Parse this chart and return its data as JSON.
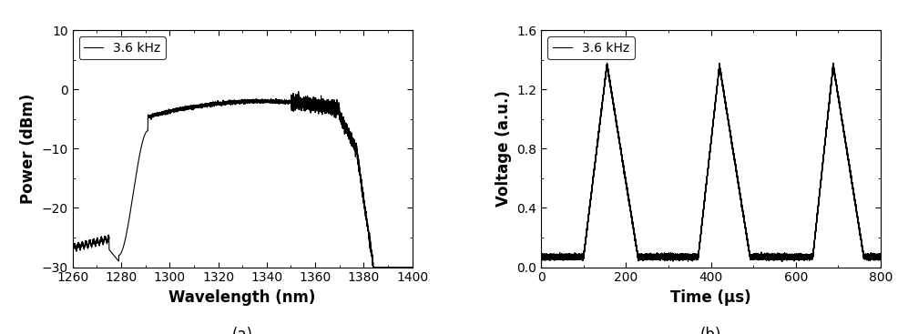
{
  "plot_a": {
    "xlabel": "Wavelength (nm)",
    "ylabel": "Power (dBm)",
    "xlim": [
      1260,
      1400
    ],
    "ylim": [
      -30,
      10
    ],
    "xticks": [
      1260,
      1280,
      1300,
      1320,
      1340,
      1360,
      1380,
      1400
    ],
    "yticks": [
      -30,
      -20,
      -10,
      0,
      10
    ],
    "legend_label": "3.6 kHz",
    "label_a": "(a)"
  },
  "plot_b": {
    "xlabel": "Time (μs)",
    "ylabel": "Voltage (a.u.)",
    "xlim": [
      0,
      800
    ],
    "ylim": [
      0,
      1.6
    ],
    "xticks": [
      0,
      200,
      400,
      600,
      800
    ],
    "yticks": [
      0.0,
      0.4,
      0.8,
      1.2,
      1.6
    ],
    "legend_label": "3.6 kHz",
    "label_b": "(b)"
  },
  "line_color": "#000000",
  "line_width": 0.8,
  "background_color": "#ffffff",
  "tick_fontsize": 10,
  "label_fontsize": 12,
  "legend_fontsize": 10,
  "sublabel_fontsize": 12
}
